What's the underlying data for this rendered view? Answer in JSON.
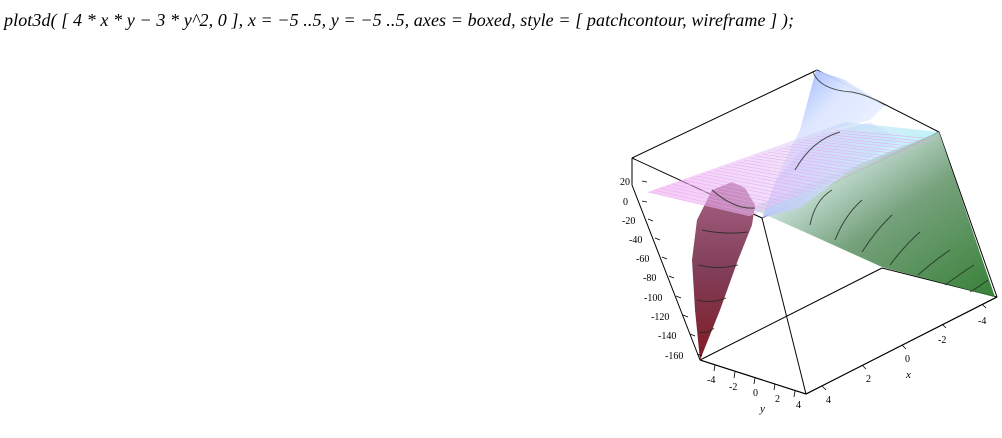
{
  "worksheet": {
    "command": "plot3d( [ 4 * x * y − 3 * y^2, 0 ], x = −5 ..5, y = −5 ..5, axes = boxed, style = [ patchcontour, wireframe ] );"
  },
  "plot": {
    "z_ticks": [
      "20",
      "0",
      "-20",
      "-40",
      "-60",
      "-80",
      "-100",
      "-120",
      "-140",
      "-160"
    ],
    "y_ticks": [
      "-4",
      "-2",
      "0",
      "2",
      "4"
    ],
    "x_ticks": [
      "-4",
      "-2",
      "0",
      "2",
      "4"
    ],
    "x_label": "x",
    "y_label": "y",
    "colors": {
      "surface_red": "#6a1e2a",
      "surface_green": "#2f7a2f",
      "surface_blue": "#9db7ff",
      "plane_magenta": "#f2a6f0",
      "plane_cyan": "#a8f0f5"
    }
  }
}
